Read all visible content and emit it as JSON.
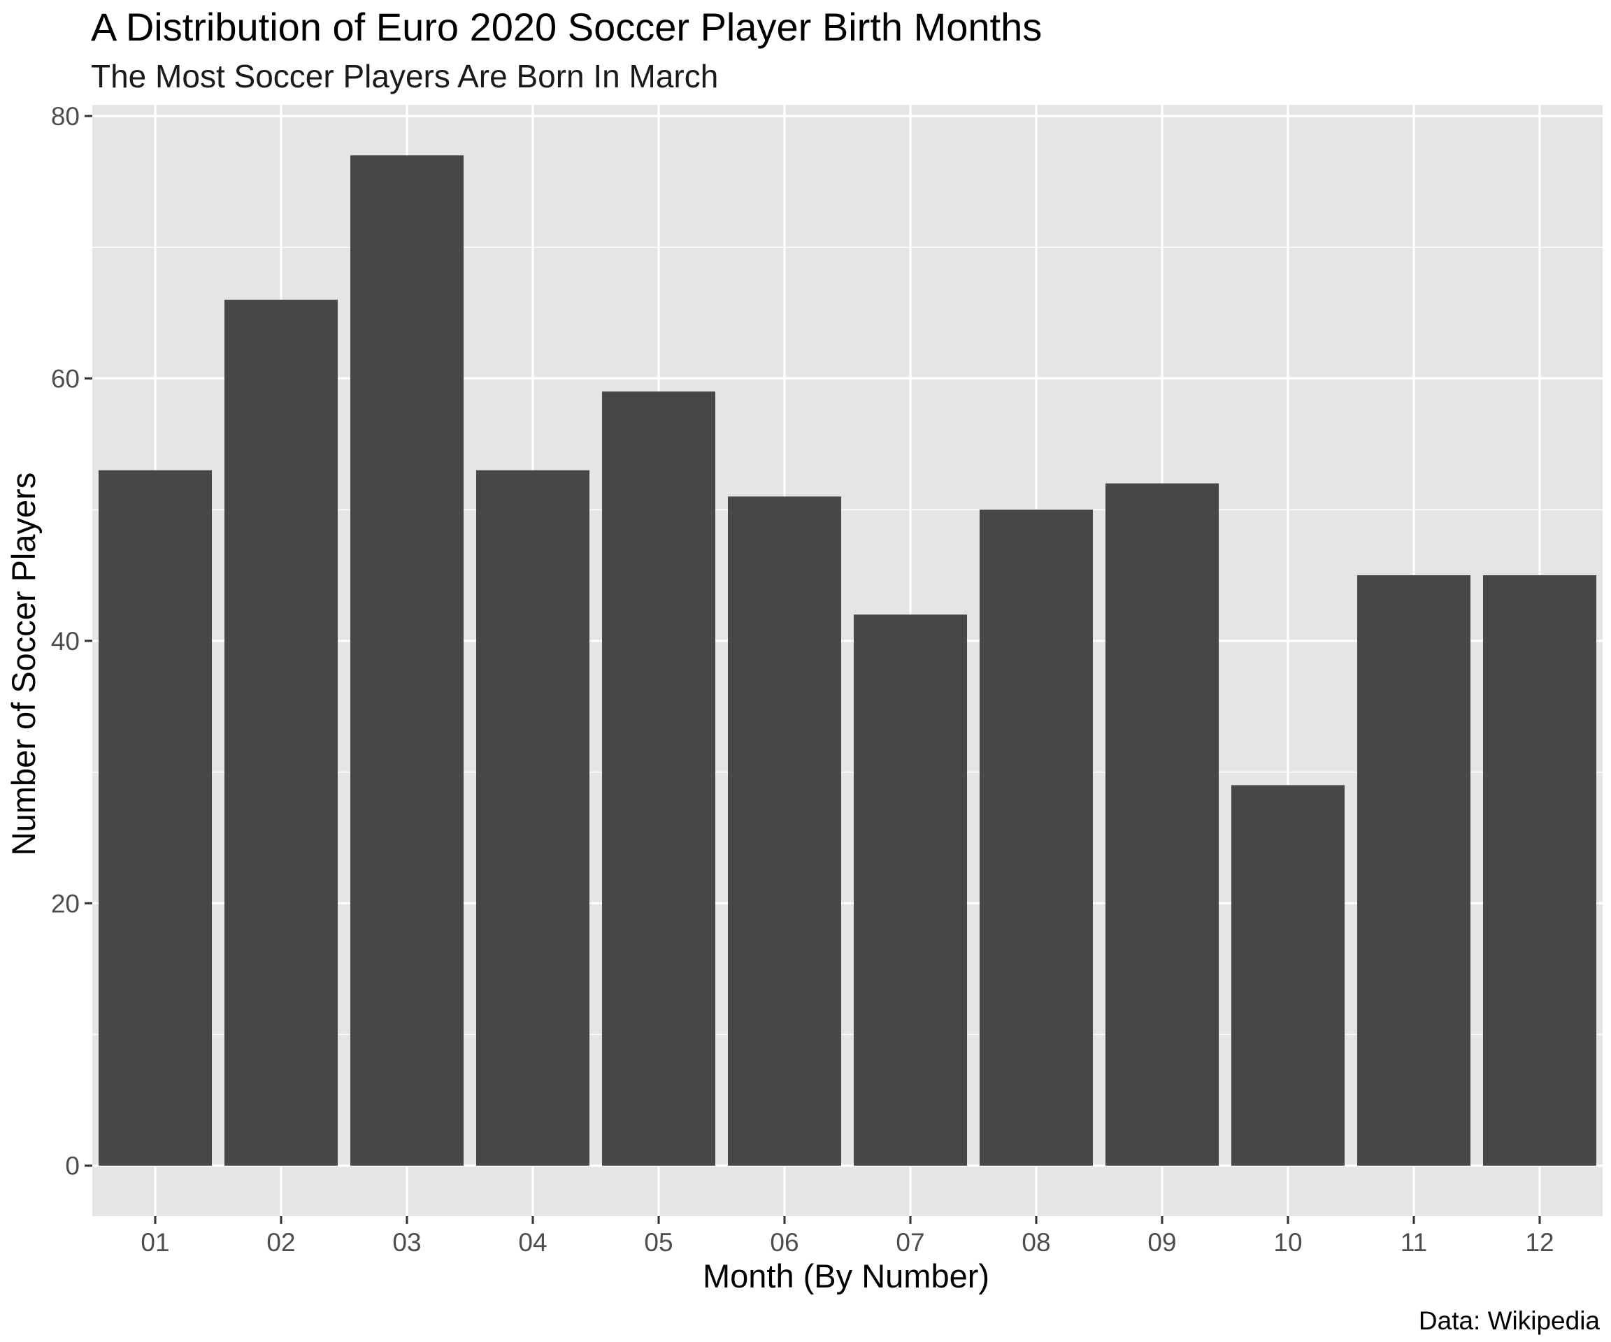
{
  "chart_data": {
    "type": "bar",
    "title": "A Distribution of Euro 2020 Soccer Player Birth Months",
    "subtitle": "The Most Soccer Players Are Born In March",
    "xlabel": "Month (By Number)",
    "ylabel": "Number of Soccer Players",
    "caption": "Data: Wikipedia",
    "categories": [
      "01",
      "02",
      "03",
      "04",
      "05",
      "06",
      "07",
      "08",
      "09",
      "10",
      "11",
      "12"
    ],
    "values": [
      53,
      66,
      77,
      53,
      59,
      51,
      42,
      50,
      52,
      29,
      45,
      45
    ],
    "ylim": [
      -3.85,
      80.85
    ],
    "yticks": [
      0,
      20,
      40,
      60,
      80
    ],
    "grid": true,
    "colors": {
      "bar": "#474747",
      "panel": "#e5e5e5",
      "grid": "#ffffff"
    }
  }
}
